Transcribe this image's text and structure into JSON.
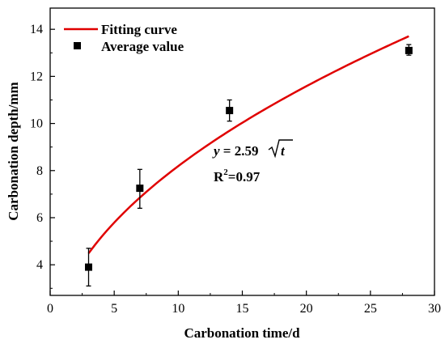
{
  "chart_data": {
    "type": "scatter",
    "xlabel": "Carbonation time/d",
    "ylabel": "Carbonation depth/mm",
    "xlim": [
      0,
      30
    ],
    "ylim": [
      2.7,
      14.9
    ],
    "xticks": [
      0,
      5,
      10,
      15,
      20,
      25,
      30
    ],
    "yticks": [
      4,
      6,
      8,
      10,
      12,
      14
    ],
    "grid": false,
    "legend_position": "top-left",
    "series": [
      {
        "name": "Fitting curve",
        "kind": "line",
        "color": "#e00000",
        "model": "2.59*sqrt(t)",
        "x_range": [
          3,
          28
        ]
      },
      {
        "name": "Average value",
        "kind": "points",
        "color": "#000000",
        "marker": "square",
        "points": [
          {
            "x": 3,
            "y": 3.9,
            "err_low": 3.1,
            "err_high": 4.7
          },
          {
            "x": 7,
            "y": 7.25,
            "err_low": 6.4,
            "err_high": 8.05
          },
          {
            "x": 14,
            "y": 10.55,
            "err_low": 10.1,
            "err_high": 11.0
          },
          {
            "x": 28,
            "y": 13.1,
            "err_low": 12.9,
            "err_high": 13.35
          }
        ]
      }
    ],
    "annotations": {
      "equation_prefix": "y = 2.59",
      "equation_var": "t",
      "r2_prefix": "R",
      "r2_sup": "2",
      "r2_value": "=0.97"
    }
  }
}
